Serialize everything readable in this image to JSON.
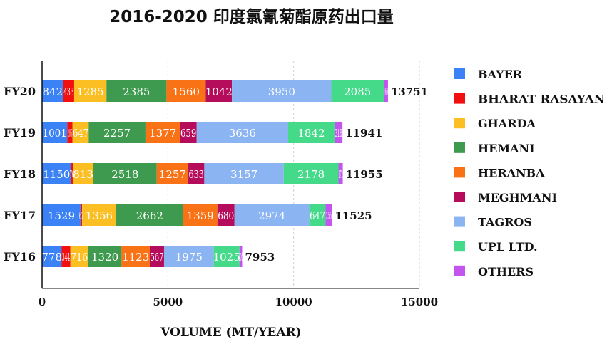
{
  "chart_data": {
    "type": "bar",
    "orientation": "horizontal",
    "stacked": true,
    "title": "2016-2020 印度氯氰菊酯原药出口量",
    "xlabel": "VOLUME (MT/YEAR)",
    "ylabel": "",
    "xlim": [
      0,
      15000
    ],
    "xticks": [
      "0",
      "5000",
      "10000",
      "15000"
    ],
    "grid": "vertical dashed",
    "legend_position": "right",
    "categories": [
      "FY20",
      "FY19",
      "FY18",
      "FY17",
      "FY16"
    ],
    "totals": [
      13751,
      11941,
      11955,
      11525,
      7953
    ],
    "series": [
      {
        "name": "BAYER",
        "color": "#3b82f6",
        "values": [
          842,
          1001,
          1150,
          1529,
          778
        ]
      },
      {
        "name": "BHARAT RASAYAN",
        "color": "#f10f0f",
        "values": [
          433,
          205,
          76,
          62,
          344
        ]
      },
      {
        "name": "GHARDA",
        "color": "#fbbf24",
        "values": [
          1285,
          647,
          813,
          1356,
          716
        ]
      },
      {
        "name": "HEMANI",
        "color": "#3e9a4e",
        "values": [
          2385,
          2257,
          2518,
          2662,
          1320
        ]
      },
      {
        "name": "HERANBA",
        "color": "#f97316",
        "values": [
          1560,
          1377,
          1257,
          1359,
          1123
        ]
      },
      {
        "name": "MEGHMANI",
        "color": "#b50c5b",
        "values": [
          1042,
          659,
          633,
          680,
          567
        ]
      },
      {
        "name": "TAGROS",
        "color": "#8bb4f2",
        "values": [
          3950,
          3636,
          3157,
          2974,
          1975
        ]
      },
      {
        "name": "UPL LTD.",
        "color": "#45d98a",
        "values": [
          2085,
          1842,
          2178,
          647,
          1025
        ]
      },
      {
        "name": "OTHERS",
        "color": "#c355ee",
        "values": [
          169,
          318,
          172,
          256,
          105
        ]
      }
    ]
  }
}
